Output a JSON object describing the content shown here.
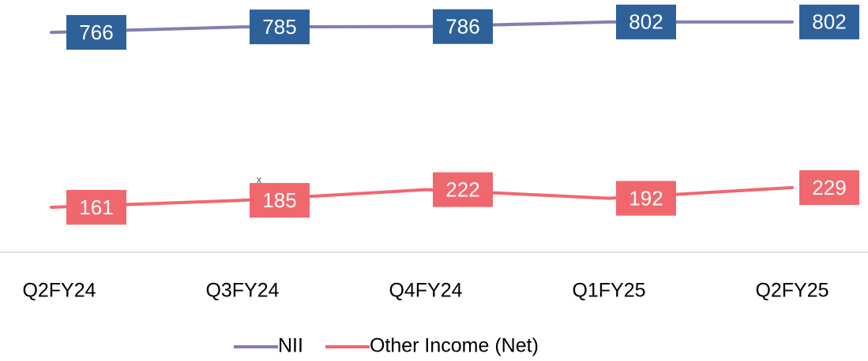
{
  "chart_data": {
    "type": "line",
    "categories": [
      "Q2FY24",
      "Q3FY24",
      "Q4FY24",
      "Q1FY25",
      "Q2FY25"
    ],
    "series": [
      {
        "name": "NII",
        "color": "#8080b2",
        "label_color": "#2e6199",
        "values": [
          766,
          785,
          786,
          802,
          802
        ]
      },
      {
        "name": "Other Income (Net)",
        "color": "#f0686e",
        "label_color": "#f0686e",
        "values": [
          161,
          185,
          222,
          192,
          229
        ]
      }
    ],
    "annotation": "x",
    "ylim": [
      0,
      878
    ],
    "legend": "bottom"
  }
}
